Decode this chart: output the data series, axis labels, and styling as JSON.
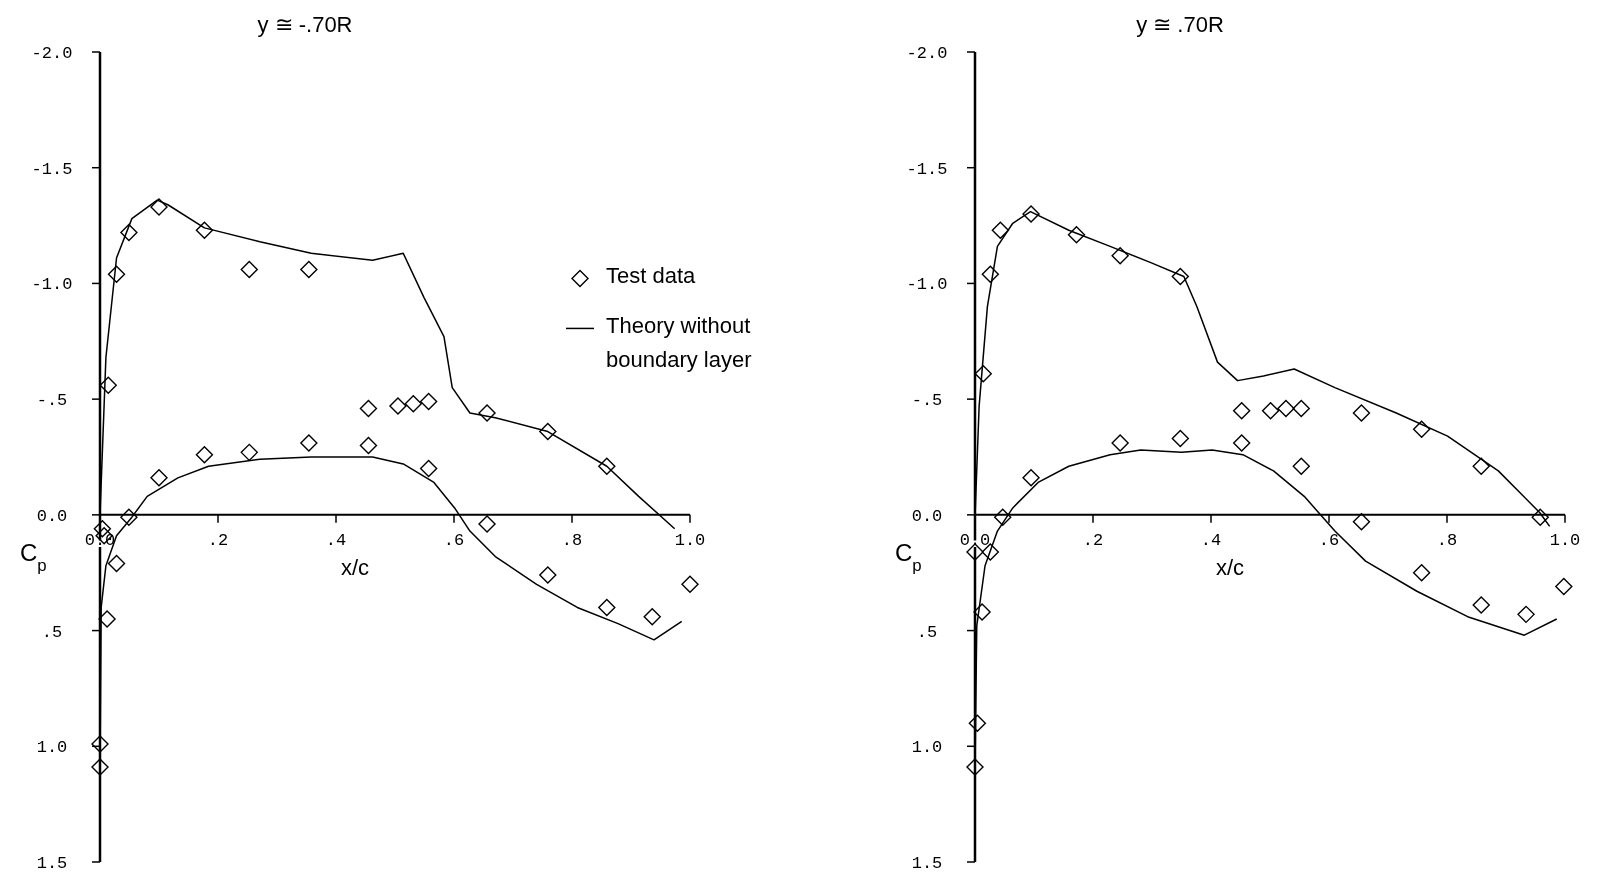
{
  "chart_data": [
    {
      "type": "scatter",
      "title": "y ≅ -.70R",
      "xlabel": "x/c",
      "ylabel": "C$_{p}$",
      "legend": "top right",
      "xlim": [
        0,
        1.0
      ],
      "ylim": [
        1.5,
        -2.0
      ],
      "xticks": [
        {
          "value": 0,
          "label": "0.0"
        },
        {
          "value": 0.2,
          "label": ".2"
        },
        {
          "value": 0.4,
          "label": ".4"
        },
        {
          "value": 0.6,
          "label": ".6"
        },
        {
          "value": 0.8,
          "label": ".8"
        },
        {
          "value": 1.0,
          "label": "1.0"
        }
      ],
      "yticks": [
        {
          "value": -2,
          "label": "-2.0"
        },
        {
          "value": -1.5,
          "label": "-1.5"
        },
        {
          "value": -1,
          "label": "-1.0"
        },
        {
          "value": -0.5,
          "label": "-.5"
        },
        {
          "value": 0,
          "label": "0.0"
        },
        {
          "value": 0.5,
          "label": ".5"
        },
        {
          "value": 1,
          "label": "1.0"
        },
        {
          "value": 1.5,
          "label": "1.5"
        }
      ],
      "series": [
        {
          "name": "Test data",
          "marker": "diamond",
          "color": "#000000",
          "x": [
            0.004,
            0.007,
            0.014,
            0.028,
            0.049,
            0.1,
            0.177,
            0.253,
            0.354,
            0.455,
            0.505,
            0.531,
            0.557,
            0.656,
            0.759,
            0.859,
            1.0,
            0.0,
            0.0,
            0.012,
            0.028,
            0.049,
            0.1,
            0.177,
            0.253,
            0.354,
            0.455,
            0.557,
            0.656,
            0.759,
            0.859,
            0.936
          ],
          "values": [
            0.06,
            0.09,
            -0.56,
            -1.04,
            -1.22,
            -1.33,
            -1.23,
            -1.06,
            -1.06,
            -0.46,
            -0.47,
            -0.48,
            -0.49,
            -0.44,
            -0.36,
            -0.21,
            0.3,
            0.99,
            1.09,
            0.45,
            0.21,
            0.01,
            -0.16,
            -0.26,
            -0.27,
            -0.31,
            -0.3,
            -0.2,
            0.04,
            0.26,
            0.4,
            0.44
          ]
        },
        {
          "name": "Theory without boundary layer",
          "type": "line",
          "color": "#000000",
          "x": [
            0,
            0.01,
            0.028,
            0.054,
            0.097,
            0.115,
            0.177,
            0.271,
            0.358,
            0.462,
            0.514,
            0.549,
            0.583,
            0.597,
            0.627,
            0.67,
            0.759,
            0.859,
            0.913,
            0.974
          ],
          "values": [
            0,
            -0.68,
            -1.11,
            -1.28,
            -1.36,
            -1.34,
            -1.24,
            -1.18,
            -1.13,
            -1.1,
            -1.13,
            -0.94,
            -0.77,
            -0.55,
            -0.44,
            -0.42,
            -0.36,
            -0.21,
            -0.08,
            0.06
          ]
        },
        {
          "type": "line",
          "color": "#000000",
          "x": [
            0,
            0.002,
            0.01,
            0.028,
            0.054,
            0.08,
            0.132,
            0.184,
            0.271,
            0.358,
            0.462,
            0.514,
            0.566,
            0.601,
            0.627,
            0.67,
            0.74,
            0.809,
            0.878,
            0.939,
            0.986
          ],
          "values": [
            1.09,
            0.4,
            0.22,
            0.09,
            0.01,
            -0.08,
            -0.16,
            -0.21,
            -0.24,
            -0.25,
            -0.25,
            -0.22,
            -0.14,
            -0.03,
            0.07,
            0.18,
            0.3,
            0.4,
            0.47,
            0.54,
            0.46
          ]
        }
      ]
    },
    {
      "type": "scatter",
      "title": "y ≅ .70R",
      "xlabel": "x/c",
      "ylabel": "C$_{p}$",
      "xlim": [
        0,
        1.0
      ],
      "ylim": [
        1.5,
        -2.0
      ],
      "xticks": [
        {
          "value": 0,
          "label": "0.0"
        },
        {
          "value": 0.2,
          "label": ".2"
        },
        {
          "value": 0.4,
          "label": ".4"
        },
        {
          "value": 0.6,
          "label": ".6"
        },
        {
          "value": 0.8,
          "label": ".8"
        },
        {
          "value": 1.0,
          "label": "1.0"
        }
      ],
      "yticks": [
        {
          "value": -2,
          "label": "-2.0"
        },
        {
          "value": -1.5,
          "label": "-1.5"
        },
        {
          "value": -1,
          "label": "-1.0"
        },
        {
          "value": -0.5,
          "label": "-.5"
        },
        {
          "value": 0,
          "label": "0.0"
        },
        {
          "value": 0.5,
          "label": ".5"
        },
        {
          "value": 1,
          "label": "1.0"
        },
        {
          "value": 1.5,
          "label": "1.5"
        }
      ],
      "series": [
        {
          "marker": "diamond",
          "color": "#000000",
          "x": [
            0.0,
            0.026,
            0.012,
            0.004,
            0.0,
            0.014,
            0.026,
            0.043,
            0.095,
            0.172,
            0.246,
            0.348,
            0.452,
            0.501,
            0.527,
            0.553,
            0.655,
            0.757,
            0.858,
            0.958,
            0.998,
            0.047,
            0.095,
            0.246,
            0.348,
            0.452,
            0.553,
            0.655,
            0.757,
            0.858,
            0.934
          ],
          "values": [
            0.16,
            0.16,
            0.42,
            0.9,
            1.09,
            -0.61,
            -1.04,
            -1.23,
            -1.3,
            -1.21,
            -1.12,
            -1.03,
            -0.45,
            -0.45,
            -0.46,
            -0.46,
            -0.44,
            -0.37,
            -0.21,
            0.01,
            0.31,
            0.01,
            -0.16,
            -0.31,
            -0.33,
            -0.31,
            -0.21,
            0.03,
            0.25,
            0.39,
            0.43
          ]
        },
        {
          "type": "line",
          "color": "#000000",
          "x": [
            0,
            0.007,
            0.021,
            0.038,
            0.064,
            0.094,
            0.159,
            0.229,
            0.298,
            0.354,
            0.376,
            0.411,
            0.445,
            0.489,
            0.541,
            0.61,
            0.714,
            0.801,
            0.887,
            0.957,
            0.974
          ],
          "values": [
            0.01,
            -0.47,
            -0.9,
            -1.16,
            -1.26,
            -1.31,
            -1.23,
            -1.16,
            -1.09,
            -1.03,
            -0.9,
            -0.66,
            -0.58,
            -0.6,
            -0.63,
            -0.55,
            -0.44,
            -0.34,
            -0.19,
            -0.01,
            0.05
          ]
        },
        {
          "type": "line",
          "color": "#000000",
          "x": [
            0,
            0.003,
            0.017,
            0.038,
            0.064,
            0.107,
            0.159,
            0.229,
            0.281,
            0.35,
            0.402,
            0.454,
            0.506,
            0.558,
            0.61,
            0.662,
            0.749,
            0.835,
            0.931,
            0.986
          ],
          "values": [
            1.1,
            0.48,
            0.22,
            0.07,
            -0.03,
            -0.14,
            -0.21,
            -0.26,
            -0.28,
            -0.27,
            -0.28,
            -0.26,
            -0.19,
            -0.08,
            0.07,
            0.2,
            0.33,
            0.44,
            0.52,
            0.45
          ]
        }
      ]
    }
  ]
}
